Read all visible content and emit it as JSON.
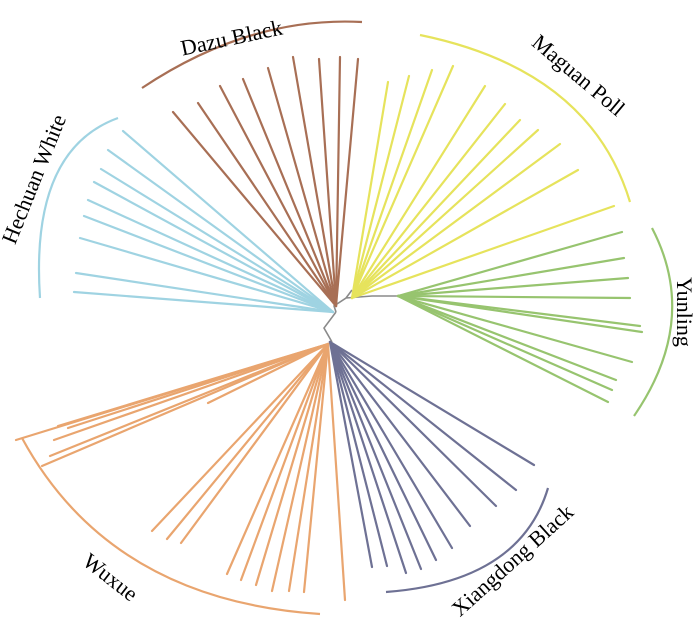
{
  "diagram": {
    "clades": [
      {
        "name": "Dazu Black",
        "color": "#a86f55"
      },
      {
        "name": "Maguan Poll",
        "color": "#e6e35c"
      },
      {
        "name": "Yunling",
        "color": "#97c46f"
      },
      {
        "name": "Xiangdong Black",
        "color": "#6e7194"
      },
      {
        "name": "Wuxue",
        "color": "#e9a56f"
      },
      {
        "name": "Hechuan White",
        "color": "#9fd3e2"
      }
    ],
    "trunk_color": "#8a8a8a"
  }
}
